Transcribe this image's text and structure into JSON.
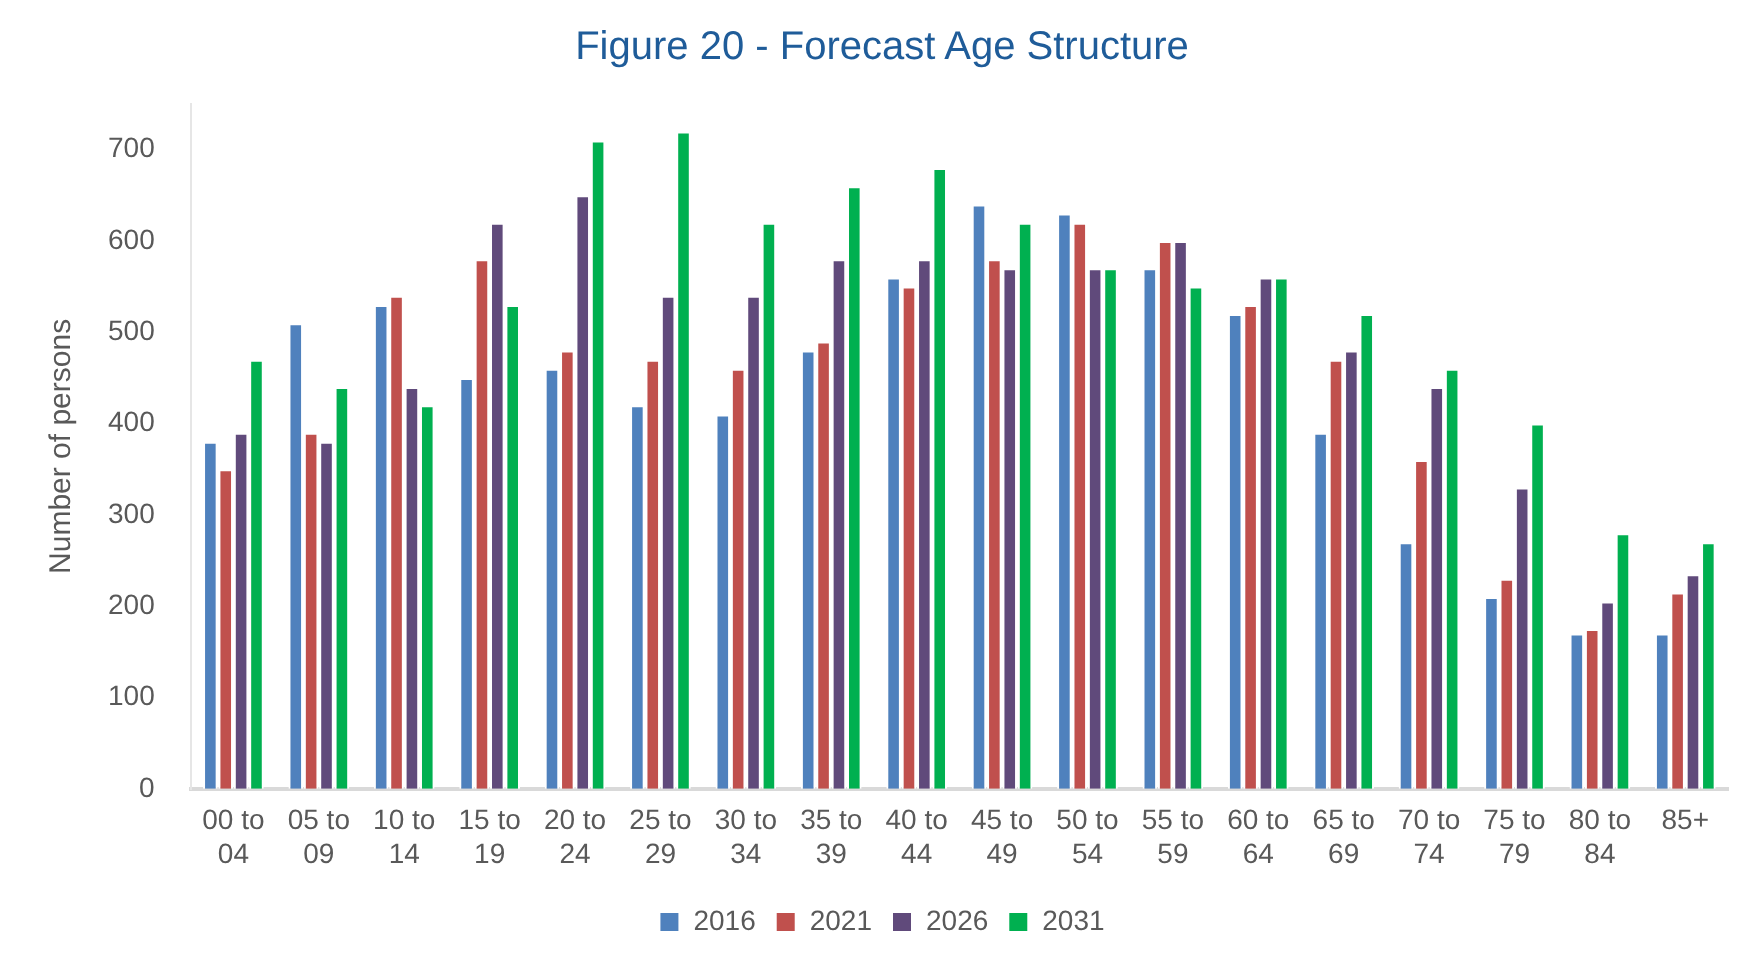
{
  "chart_data": {
    "type": "bar",
    "title": "Figure 20 - Forecast Age Structure",
    "ylabel": "Number of persons",
    "categories": [
      "00 to 04",
      "05 to 09",
      "10 to 14",
      "15 to 19",
      "20 to 24",
      "25 to 29",
      "30 to 34",
      "35 to 39",
      "40 to 44",
      "45 to 49",
      "50 to 54",
      "55 to 59",
      "60 to 64",
      "65 to 69",
      "70 to 74",
      "75 to 79",
      "80 to 84",
      "85+"
    ],
    "series": [
      {
        "name": "2016",
        "color": "#4f81bd",
        "values": [
          380,
          510,
          530,
          450,
          460,
          420,
          410,
          480,
          560,
          640,
          630,
          570,
          520,
          390,
          270,
          210,
          170,
          170
        ]
      },
      {
        "name": "2021",
        "color": "#c0504d",
        "values": [
          350,
          390,
          540,
          580,
          480,
          470,
          460,
          490,
          550,
          580,
          620,
          600,
          530,
          470,
          360,
          230,
          175,
          215
        ]
      },
      {
        "name": "2026",
        "color": "#604a7b",
        "values": [
          390,
          380,
          440,
          620,
          650,
          540,
          540,
          580,
          580,
          570,
          570,
          600,
          560,
          480,
          440,
          330,
          205,
          235
        ]
      },
      {
        "name": "2031",
        "color": "#00b050",
        "values": [
          470,
          440,
          420,
          530,
          710,
          720,
          620,
          660,
          680,
          620,
          570,
          550,
          560,
          520,
          460,
          400,
          280,
          270
        ]
      }
    ],
    "ylim": [
      0,
      750
    ],
    "yticks": [
      0,
      100,
      200,
      300,
      400,
      500,
      600,
      700
    ],
    "grid": false,
    "legend": "bottom"
  }
}
